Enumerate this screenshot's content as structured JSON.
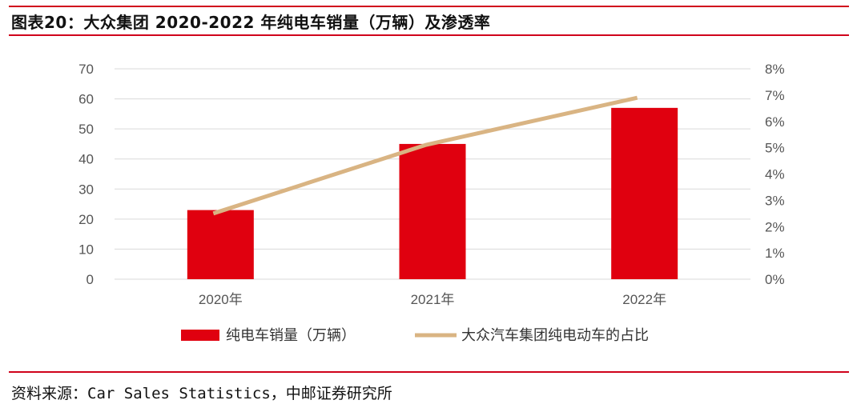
{
  "header": {
    "title": "图表20：大众集团 2020-2022 年纯电车销量（万辆）及渗透率"
  },
  "footer": {
    "source": "资料来源：Car Sales Statistics，中邮证券研究所"
  },
  "colors": {
    "bar": "#e0000f",
    "line": "#d9b483",
    "rule": "#d0021b",
    "grid": "#d9d9d9"
  },
  "chart_data": {
    "type": "bar+line",
    "categories": [
      "2020年",
      "2021年",
      "2022年"
    ],
    "series": [
      {
        "name": "纯电车销量（万辆）",
        "type": "bar",
        "axis": "left",
        "values": [
          23.0,
          45.0,
          57.0
        ]
      },
      {
        "name": "大众汽车集团纯电动车的占比",
        "type": "line",
        "axis": "right",
        "values": [
          2.5,
          5.1,
          6.9
        ]
      }
    ],
    "y_left": {
      "min": 0,
      "max": 70,
      "step": 10,
      "ticks": [
        "0",
        "10",
        "20",
        "30",
        "40",
        "50",
        "60",
        "70"
      ]
    },
    "y_right": {
      "min": 0,
      "max": 8,
      "step": 1,
      "unit": "%",
      "ticks": [
        "0%",
        "1%",
        "2%",
        "3%",
        "4%",
        "5%",
        "6%",
        "7%",
        "8%"
      ]
    },
    "grid": true,
    "legend_position": "bottom"
  }
}
